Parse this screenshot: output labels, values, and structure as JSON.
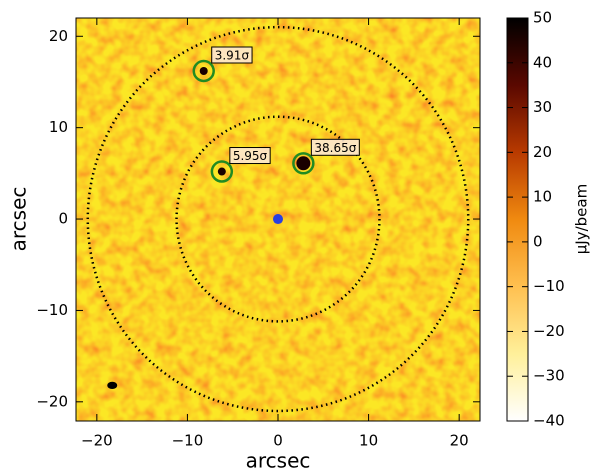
{
  "chart_data": {
    "type": "image",
    "xlabel": "arcsec",
    "ylabel": "arcsec",
    "colorbar_label": "µJy/beam",
    "xlim": [
      -22.3,
      22.3
    ],
    "ylim": [
      -22.1,
      22.0
    ],
    "xticks": [
      {
        "value": -20,
        "label": "−20"
      },
      {
        "value": -10,
        "label": "−10"
      },
      0,
      10,
      20
    ],
    "yticks": [
      {
        "value": -20,
        "label": "−20"
      },
      {
        "value": -10,
        "label": "−10"
      },
      0,
      10,
      20
    ],
    "clim": [
      -40,
      50
    ],
    "cticks": [
      {
        "value": -40,
        "label": "−40"
      },
      {
        "value": -30,
        "label": "−30"
      },
      {
        "value": -20,
        "label": "−20"
      },
      {
        "value": -10,
        "label": "−10"
      },
      0,
      10,
      20,
      30,
      40,
      50
    ],
    "colormap": [
      "#ffffff",
      "#fff09a",
      "#ffc050",
      "#f08a10",
      "#b83a00",
      "#5a0800",
      "#000000"
    ],
    "rings": [
      11.2,
      21.0
    ],
    "center_marker": {
      "x": 0,
      "y": 0,
      "color": "#2a3fe0"
    },
    "beam": {
      "x": -18.3,
      "y": -18.2,
      "width": 1.1,
      "height": 0.8
    },
    "sources": [
      {
        "x": -8.2,
        "y": 16.2,
        "radius": 1.1,
        "label": "3.91σ",
        "color": "#228b22"
      },
      {
        "x": -6.2,
        "y": 5.2,
        "radius": 1.1,
        "label": "5.95σ",
        "color": "#228b22"
      },
      {
        "x": 2.8,
        "y": 6.1,
        "radius": 1.1,
        "label": "38.65σ",
        "color": "#228b22"
      }
    ]
  }
}
